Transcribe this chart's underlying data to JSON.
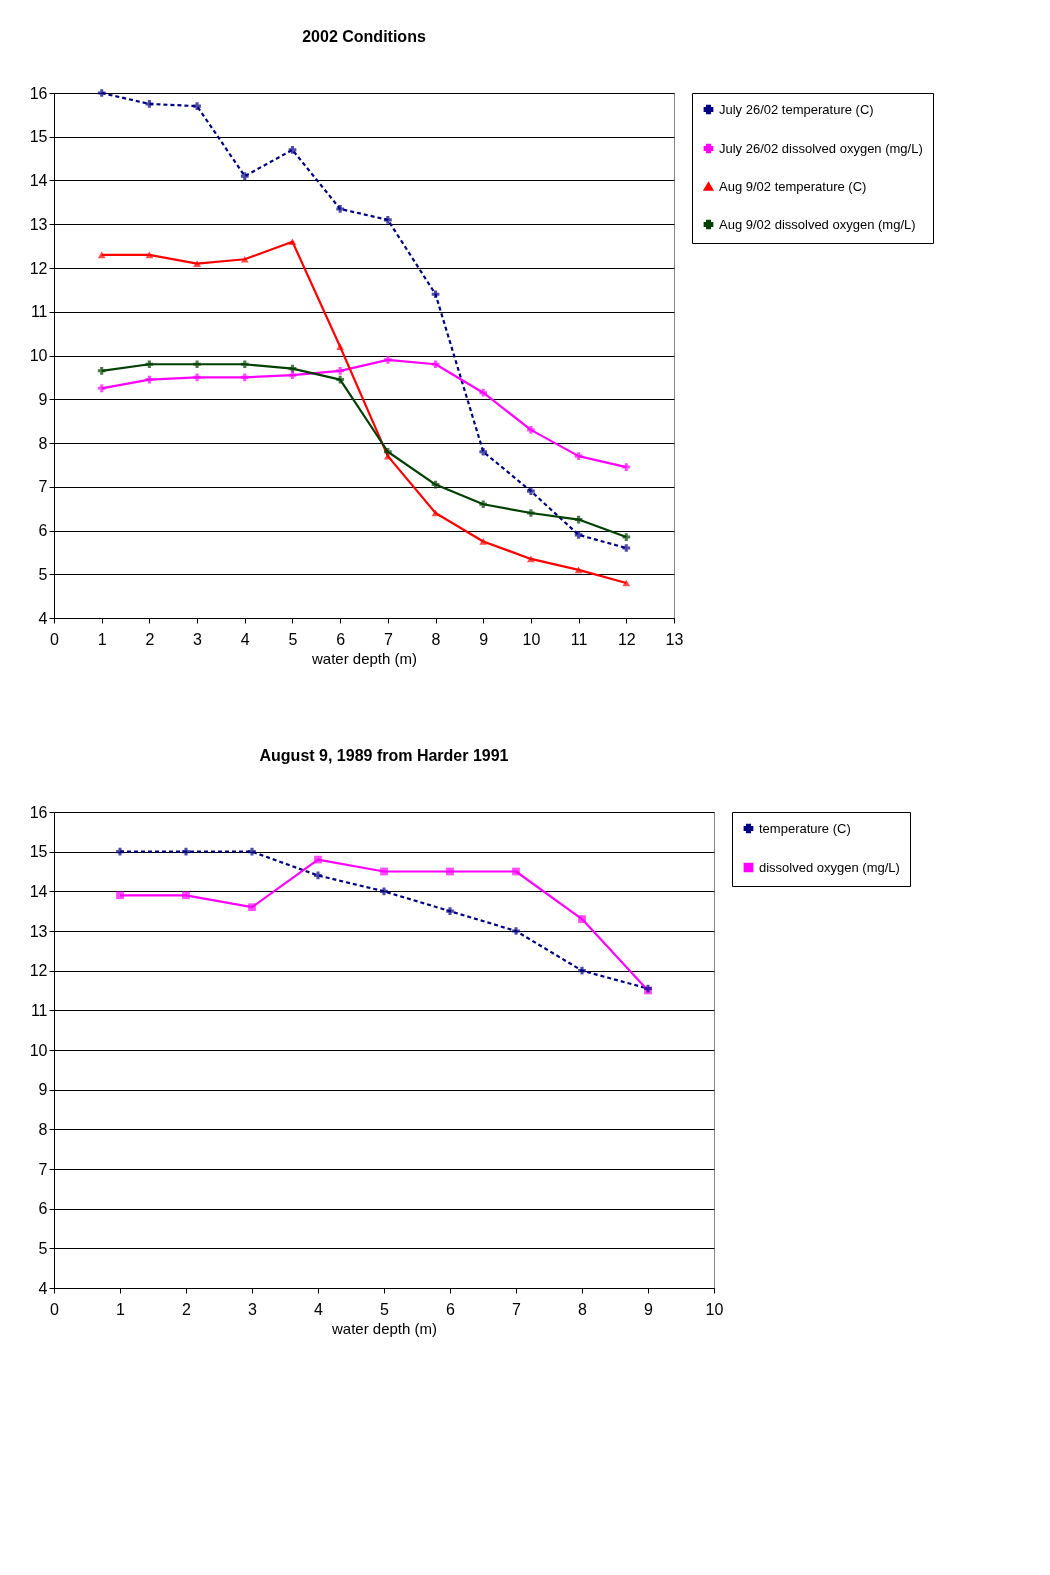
{
  "chart_data": [
    {
      "type": "line",
      "title": "2002 Conditions",
      "xlabel": "water depth (m)",
      "xlim": [
        0,
        13
      ],
      "xticks": [
        0,
        1,
        2,
        3,
        4,
        5,
        6,
        7,
        8,
        9,
        10,
        11,
        12,
        13
      ],
      "ylim": [
        4,
        16
      ],
      "yticks": [
        4,
        5,
        6,
        7,
        8,
        9,
        10,
        11,
        12,
        13,
        14,
        15,
        16
      ],
      "grid": "y",
      "legend": "right",
      "x": [
        1,
        2,
        3,
        4,
        5,
        6,
        7,
        8,
        9,
        10,
        11,
        12
      ],
      "series": [
        {
          "name": "July 26/02 temperature (C)",
          "color": "#000080",
          "line_style": "dashed",
          "marker": "cross",
          "values": [
            16,
            15.75,
            15.7,
            14.1,
            14.7,
            13.35,
            13.1,
            11.4,
            7.8,
            6.9,
            5.9,
            5.6
          ]
        },
        {
          "name": "July 26/02 dissolved oxygen (mg/L)",
          "color": "#ff00ff",
          "line_style": "solid",
          "marker": "cross",
          "values": [
            9.25,
            9.45,
            9.5,
            9.5,
            9.55,
            9.65,
            9.9,
            9.8,
            9.15,
            8.3,
            7.7,
            7.45
          ]
        },
        {
          "name": "Aug 9/02 temperature (C)",
          "color": "#ff0000",
          "line_style": "solid",
          "marker": "triangle",
          "values": [
            12.3,
            12.3,
            12.1,
            12.2,
            12.6,
            10.2,
            7.7,
            6.4,
            5.75,
            5.35,
            5.1,
            4.8
          ]
        },
        {
          "name": "Aug 9/02 dissolved oxygen (mg/L)",
          "color": "#004000",
          "line_style": "solid",
          "marker": "cross",
          "values": [
            9.65,
            9.8,
            9.8,
            9.8,
            9.7,
            9.45,
            7.8,
            7.05,
            6.6,
            6.4,
            6.25,
            5.85
          ]
        }
      ]
    },
    {
      "type": "line",
      "title": "August 9, 1989 from Harder 1991",
      "xlabel": "water depth (m)",
      "xlim": [
        0,
        10
      ],
      "xticks": [
        0,
        1,
        2,
        3,
        4,
        5,
        6,
        7,
        8,
        9,
        10
      ],
      "ylim": [
        4,
        16
      ],
      "yticks": [
        4,
        5,
        6,
        7,
        8,
        9,
        10,
        11,
        12,
        13,
        14,
        15,
        16
      ],
      "grid": "y",
      "legend": "right",
      "x": [
        1,
        2,
        3,
        4,
        5,
        6,
        7,
        8,
        9
      ],
      "series": [
        {
          "name": "temperature (C)",
          "color": "#000080",
          "line_style": "dashed",
          "marker": "cross",
          "values": [
            15,
            15,
            15,
            14.4,
            14,
            13.5,
            13,
            12,
            11.55
          ]
        },
        {
          "name": "dissolved oxygen (mg/L)",
          "color": "#ff00ff",
          "line_style": "solid",
          "marker": "square",
          "values": [
            13.9,
            13.9,
            13.6,
            14.8,
            14.5,
            14.5,
            14.5,
            13.3,
            11.5
          ]
        }
      ]
    }
  ]
}
